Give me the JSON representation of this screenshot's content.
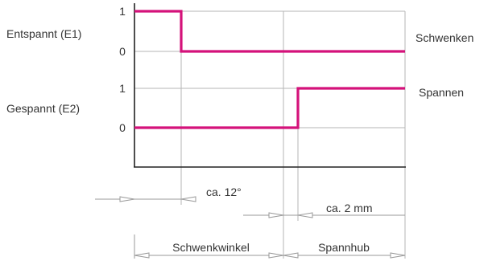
{
  "signals": [
    {
      "row_label": "Entspannt (E1)",
      "high_tick": "1",
      "low_tick": "0",
      "name": "Schwenken",
      "description_levels": "high until ca. 12° then low to end"
    },
    {
      "row_label": "Gespannt (E2)",
      "high_tick": "1",
      "low_tick": "0",
      "name": "Spannen",
      "description_levels": "low until start of Spannhub (+ca. 2 mm) then high to end"
    }
  ],
  "dimensions": {
    "angle_label": "ca. 12°",
    "stroke_label": "ca. 2 mm",
    "phase_1": "Schwenkwinkel",
    "phase_2": "Spannhub"
  },
  "colors": {
    "signal": "#d4127a",
    "grid": "#b5b5b5",
    "axis": "#222222",
    "dimension": "#9a9a9a",
    "text": "#333333"
  }
}
